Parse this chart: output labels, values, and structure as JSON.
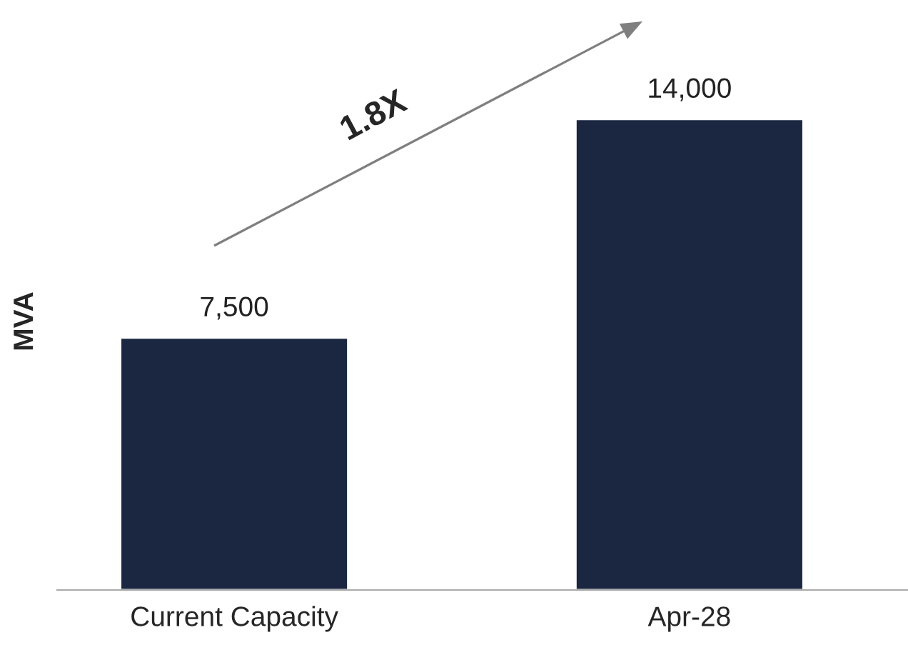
{
  "chart_data": {
    "type": "bar",
    "ylabel": "MVA",
    "categories": [
      "Current Capacity",
      "Apr-28"
    ],
    "values": [
      7500,
      14000
    ],
    "color": "#1b2740",
    "value_labels": [
      "7,500",
      "14,000"
    ],
    "annotations": [
      "1.8X"
    ],
    "grid": false,
    "legend": false,
    "tick_labels": "x"
  }
}
